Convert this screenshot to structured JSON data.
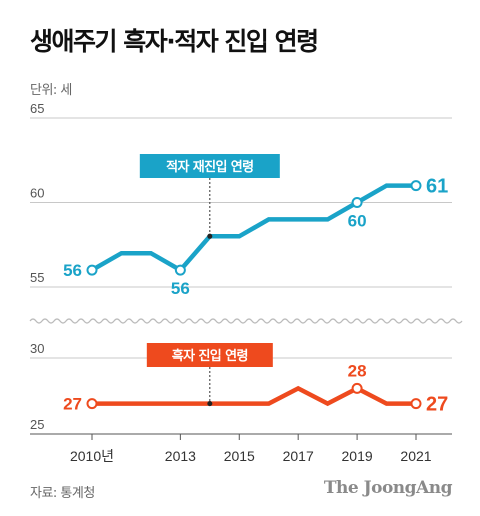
{
  "title": "생애주기 흑자·적자 진입 연령",
  "unit": "단위: 세",
  "source": "자료: 통계청",
  "brand": "The JoongAng",
  "colors": {
    "top": "#1aa3c8",
    "bottom": "#ee4a1e"
  },
  "chart_data": [
    {
      "type": "line",
      "panel": "top",
      "yticks": [
        "65",
        "60",
        "55"
      ],
      "ylim": [
        55,
        65
      ],
      "series": [
        {
          "name": "적자 재진입 연령",
          "x": [
            2010,
            2011,
            2012,
            2013,
            2014,
            2015,
            2016,
            2017,
            2018,
            2019,
            2020,
            2021
          ],
          "values": [
            56,
            57,
            57,
            56,
            58,
            58,
            59,
            59,
            59,
            60,
            61,
            61
          ]
        }
      ],
      "data_labels": [
        {
          "x": 2010,
          "text": "56"
        },
        {
          "x": 2013,
          "text": "56"
        },
        {
          "x": 2019,
          "text": "60"
        },
        {
          "x": 2021,
          "text": "61"
        }
      ],
      "annotation": {
        "x": 2014,
        "text": "적자 재진입 연령"
      }
    },
    {
      "type": "line",
      "panel": "bottom",
      "yticks": [
        "30",
        "25"
      ],
      "ylim": [
        25,
        30
      ],
      "series": [
        {
          "name": "흑자 진입 연령",
          "x": [
            2010,
            2011,
            2012,
            2013,
            2014,
            2015,
            2016,
            2017,
            2018,
            2019,
            2020,
            2021
          ],
          "values": [
            27,
            27,
            27,
            27,
            27,
            27,
            27,
            28,
            27,
            28,
            27,
            27
          ]
        }
      ],
      "data_labels": [
        {
          "x": 2010,
          "text": "27"
        },
        {
          "x": 2019,
          "text": "28"
        },
        {
          "x": 2021,
          "text": "27"
        }
      ],
      "annotation": {
        "x": 2014,
        "text": "흑자 진입 연령"
      }
    }
  ],
  "x_axis": {
    "xlim": [
      2010,
      2021
    ],
    "ticks": [
      {
        "x": 2010,
        "label": "2010년"
      },
      {
        "x": 2013,
        "label": "2013"
      },
      {
        "x": 2015,
        "label": "2015"
      },
      {
        "x": 2017,
        "label": "2017"
      },
      {
        "x": 2019,
        "label": "2019"
      },
      {
        "x": 2021,
        "label": "2021"
      }
    ]
  }
}
